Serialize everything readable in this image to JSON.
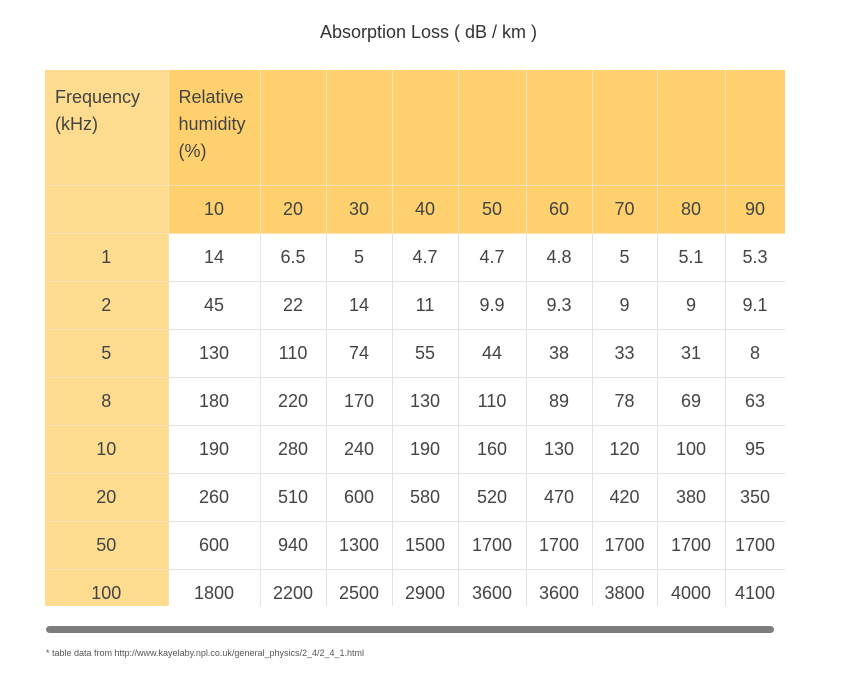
{
  "title": "Absorption Loss ( dB / km )",
  "header": {
    "frequency_label": "Frequency (kHz)",
    "humidity_label": "Relative humidity (%)"
  },
  "humidity_values": [
    "10",
    "20",
    "30",
    "40",
    "50",
    "60",
    "70",
    "80",
    "90"
  ],
  "rows": [
    {
      "freq": "1",
      "values": [
        "14",
        "6.5",
        "5",
        "4.7",
        "4.7",
        "4.8",
        "5",
        "5.1",
        "5.3"
      ]
    },
    {
      "freq": "2",
      "values": [
        "45",
        "22",
        "14",
        "11",
        "9.9",
        "9.3",
        "9",
        "9",
        "9.1"
      ]
    },
    {
      "freq": "5",
      "values": [
        "130",
        "110",
        "74",
        "55",
        "44",
        "38",
        "33",
        "31",
        "8"
      ]
    },
    {
      "freq": "8",
      "values": [
        "180",
        "220",
        "170",
        "130",
        "110",
        "89",
        "78",
        "69",
        "63"
      ]
    },
    {
      "freq": "10",
      "values": [
        "190",
        "280",
        "240",
        "190",
        "160",
        "130",
        "120",
        "100",
        "95"
      ]
    },
    {
      "freq": "20",
      "values": [
        "260",
        "510",
        "600",
        "580",
        "520",
        "470",
        "420",
        "380",
        "350"
      ]
    },
    {
      "freq": "50",
      "values": [
        "600",
        "940",
        "1300",
        "1500",
        "1700",
        "1700",
        "1700",
        "1700",
        "1700"
      ]
    },
    {
      "freq": "100",
      "values": [
        "1800",
        "2200",
        "2500",
        "2900",
        "3600",
        "3600",
        "3800",
        "4000",
        "4100"
      ]
    }
  ],
  "footnote": "* table data from http://www.kayelaby.npl.co.uk/general_physics/2_4/2_4_1.html"
}
